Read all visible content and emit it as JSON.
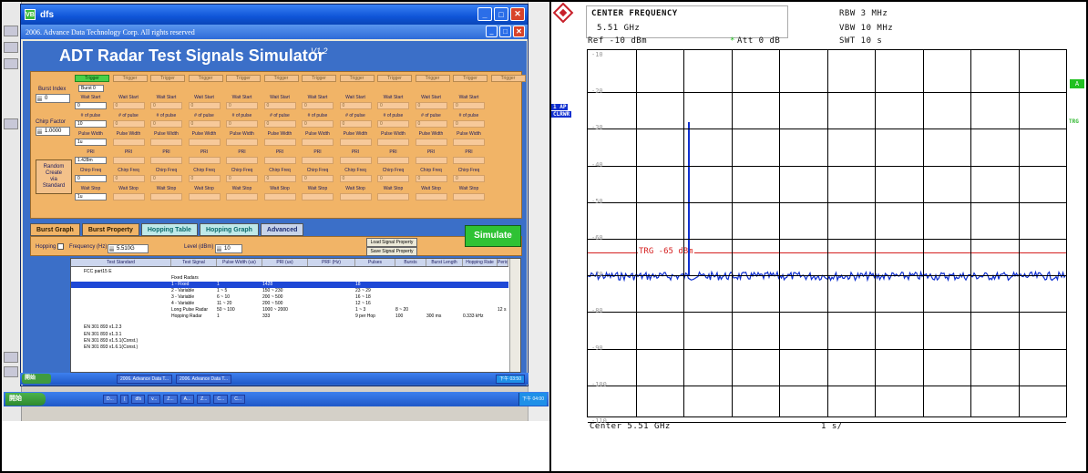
{
  "left": {
    "window_title": "dfs",
    "window_icon": "VB",
    "inner_title": "2006. Advance Data Technology Corp. All rights reserved",
    "app_title": "ADT Radar Test Signals Simulator",
    "version": "V1.2",
    "burst_index_label": "Burst Index",
    "burst_index_value": "0",
    "chirp_factor_label": "Chirp Factor",
    "chirp_factor_value": "1.0000",
    "random_btn": [
      "Random",
      "Create",
      "via",
      "Standard"
    ],
    "trigger_labels": [
      "Trigger",
      "Trigger",
      "Trigger",
      "Trigger",
      "Trigger",
      "Trigger",
      "Trigger",
      "Trigger",
      "Trigger",
      "Trigger",
      "Trigger",
      "Trigger"
    ],
    "burst_label": "Burst 0",
    "col0": {
      "labels": [
        "Wait Start",
        "# of pulse",
        "Pulse Width",
        "PRI",
        "Chirp Freq",
        "Wait Stop"
      ],
      "values": [
        "0",
        "10",
        "1u",
        "1.428m",
        "0",
        "1u"
      ]
    },
    "col_labels": [
      "Wait Start",
      "# of pulse",
      "Pulse Width",
      "PRI",
      "Chirp Freq",
      "Wait Stop"
    ],
    "col_values": [
      "0",
      "0",
      "",
      "",
      "0",
      ""
    ],
    "tabs": [
      "Burst Graph",
      "Burst Property",
      "Hopping Table",
      "Hopping Graph",
      "Advanced"
    ],
    "hopping_label": "Hopping",
    "frequency_label": "Frequency (Hz)",
    "frequency_value": "5.510G",
    "level_label": "Level (dBm)",
    "level_value": "10",
    "load_btn": "Load Signal Property",
    "save_btn": "Save Signal Property",
    "simulate_btn": "Simulate",
    "grid_headers": [
      "Test Standard",
      "Test Signal",
      "Pulse Width (us)",
      "PRI (us)",
      "PRF (Hz)",
      "Pulses",
      "Bursts",
      "Burst Length",
      "Hopping Rate",
      "Period"
    ],
    "grid_rows": [
      {
        "std": "FCC part15 E",
        "sig": "",
        "pw": "",
        "pri": "",
        "prf": "",
        "pulses": "",
        "bursts": "",
        "bl": "",
        "hr": "",
        "per": ""
      },
      {
        "std": "",
        "sig": "Fixed Radars",
        "pw": "",
        "pri": "",
        "prf": "",
        "pulses": "",
        "bursts": "",
        "bl": "",
        "hr": "",
        "per": ""
      },
      {
        "std": "",
        "sig": "1 - Fixed",
        "pw": "1",
        "pri": "1428",
        "prf": "",
        "pulses": "18",
        "bursts": "",
        "bl": "",
        "hr": "",
        "per": ""
      },
      {
        "std": "",
        "sig": "2 - Variable",
        "pw": "1 ~ 5",
        "pri": "150 ~ 230",
        "prf": "",
        "pulses": "23 ~ 29",
        "bursts": "",
        "bl": "",
        "hr": "",
        "per": ""
      },
      {
        "std": "",
        "sig": "3 - Variable",
        "pw": "6 ~ 10",
        "pri": "200 ~ 500",
        "prf": "",
        "pulses": "16 ~ 18",
        "bursts": "",
        "bl": "",
        "hr": "",
        "per": ""
      },
      {
        "std": "",
        "sig": "4 - Variable",
        "pw": "11 ~ 20",
        "pri": "200 ~ 500",
        "prf": "",
        "pulses": "12 ~ 16",
        "bursts": "",
        "bl": "",
        "hr": "",
        "per": ""
      },
      {
        "std": "",
        "sig": "Long Pulse Radar",
        "pw": "50 ~ 100",
        "pri": "1000 ~ 2000",
        "prf": "",
        "pulses": "1 ~ 3",
        "bursts": "8 ~ 20",
        "bl": "",
        "hr": "",
        "per": "12 s"
      },
      {
        "std": "",
        "sig": "Hopping Radar",
        "pw": "1",
        "pri": "333",
        "prf": "",
        "pulses": "9 per Hop",
        "bursts": "100",
        "bl": "300 ms",
        "hr": "0.333 kHz",
        "per": ""
      },
      {
        "std": "EN 301 893 v1.2.3",
        "sig": "",
        "pw": "",
        "pri": "",
        "prf": "",
        "pulses": "",
        "bursts": "",
        "bl": "",
        "hr": "",
        "per": ""
      },
      {
        "std": "EN 301 893 v1.3.1",
        "sig": "",
        "pw": "",
        "pri": "",
        "prf": "",
        "pulses": "",
        "bursts": "",
        "bl": "",
        "hr": "",
        "per": ""
      },
      {
        "std": "EN 301 893 v1.5.1(Const.)",
        "sig": "",
        "pw": "",
        "pri": "",
        "prf": "",
        "pulses": "",
        "bursts": "",
        "bl": "",
        "hr": "",
        "per": ""
      },
      {
        "std": "EN 301 893 v1.6.1(Const.)",
        "sig": "",
        "pw": "",
        "pri": "",
        "prf": "",
        "pulses": "",
        "bursts": "",
        "bl": "",
        "hr": "",
        "per": ""
      }
    ],
    "subtask": {
      "start": "開始",
      "items": [
        "2006. Advance Data T...",
        "2006. Advance Data T..."
      ],
      "clock": "下午 03:50"
    },
    "task": {
      "start": "開始",
      "items": [
        "D...",
        "(",
        "dfs",
        "v...",
        "Z...",
        "A...",
        "Z...",
        "C...",
        "C..."
      ],
      "clock": "下午 04:00"
    }
  },
  "right": {
    "measure_title": "CENTER FREQUENCY",
    "measure_value": "5.51 GHz",
    "rbw": "RBW 3 MHz",
    "vbw": "VBW 10 MHz",
    "swt": "SWT 10 s",
    "ref": "Ref -10 dBm",
    "att_star": "*",
    "att": "Att  0 dB",
    "side_left": [
      "1 AP",
      "CLRWR"
    ],
    "side_right_a": "A",
    "side_right_trg": "TRG",
    "db_labels": [
      "-10",
      "-20",
      "-30",
      "-40",
      "-50",
      "-60",
      "-70",
      "-80",
      "-90",
      "-100",
      "-110"
    ],
    "trigger_label": "TRG -65 dBm",
    "center": "Center 5.51 GHz",
    "scale": "1 s/"
  }
}
